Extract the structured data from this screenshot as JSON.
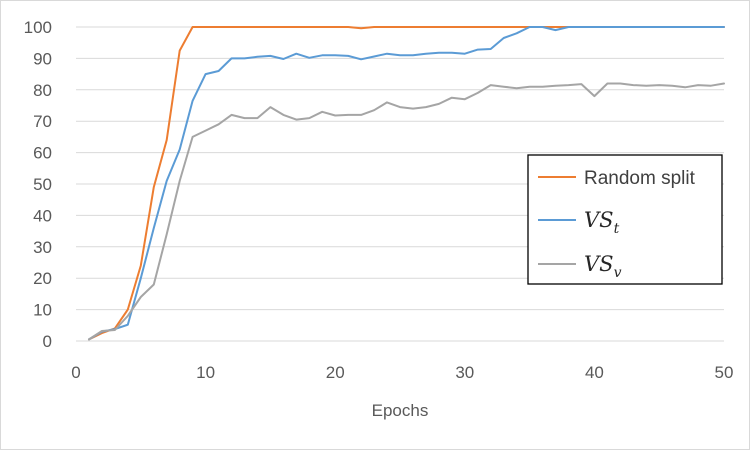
{
  "chart_data": {
    "type": "line",
    "title": "",
    "xlabel": "Epochs",
    "ylabel": "",
    "xlim": [
      0,
      50
    ],
    "ylim": [
      0,
      100
    ],
    "x_ticks": [
      0,
      10,
      20,
      30,
      40,
      50
    ],
    "y_ticks": [
      0,
      10,
      20,
      30,
      40,
      50,
      60,
      70,
      80,
      90,
      100
    ],
    "grid": "horizontal",
    "legend_position": "right",
    "x": [
      1,
      2,
      3,
      4,
      5,
      6,
      7,
      8,
      9,
      10,
      11,
      12,
      13,
      14,
      15,
      16,
      17,
      18,
      19,
      20,
      21,
      22,
      23,
      24,
      25,
      26,
      27,
      28,
      29,
      30,
      31,
      32,
      33,
      34,
      35,
      36,
      37,
      38,
      39,
      40,
      41,
      42,
      43,
      44,
      45,
      46,
      47,
      48,
      49,
      50
    ],
    "series": [
      {
        "name": "Random split",
        "color": "#ed7d31",
        "values": [
          0.5,
          2.5,
          4,
          10,
          24,
          49,
          64,
          92.5,
          100,
          100,
          100,
          100,
          100,
          100,
          100,
          100,
          100,
          100,
          100,
          100,
          100,
          99.6,
          100,
          100,
          100,
          100,
          100,
          100,
          100,
          100,
          100,
          100,
          100,
          100,
          100,
          100,
          100,
          100,
          100,
          100,
          100,
          100,
          100,
          100,
          100,
          100,
          100,
          100,
          100,
          100
        ]
      },
      {
        "name_main": "VS",
        "name_sub": "t",
        "color": "#5b9bd5",
        "values": [
          0.5,
          3,
          3.8,
          5.2,
          20,
          36,
          51,
          61,
          76.5,
          85,
          86,
          90,
          90,
          90.5,
          90.8,
          89.8,
          91.5,
          90.2,
          91,
          91,
          90.8,
          89.7,
          90.6,
          91.5,
          91,
          91,
          91.5,
          91.8,
          91.8,
          91.5,
          92.8,
          93,
          96.5,
          98,
          100,
          100,
          99,
          100,
          100,
          100,
          100,
          100,
          100,
          100,
          100,
          100,
          100,
          100,
          100,
          100
        ]
      },
      {
        "name_main": "VS",
        "name_sub": "v",
        "color": "#a5a5a5",
        "values": [
          0.5,
          3.2,
          3.5,
          8,
          14,
          18,
          34,
          51,
          65,
          67,
          69,
          72,
          71,
          71,
          74.5,
          72,
          70.5,
          71,
          73,
          71.8,
          72,
          72,
          73.5,
          76,
          74.5,
          74,
          74.5,
          75.5,
          77.5,
          77,
          79,
          81.5,
          81,
          80.5,
          81,
          81,
          81.3,
          81.5,
          81.8,
          78,
          82,
          82,
          81.5,
          81.3,
          81.5,
          81.3,
          80.8,
          81.5,
          81.3,
          82
        ]
      }
    ]
  }
}
